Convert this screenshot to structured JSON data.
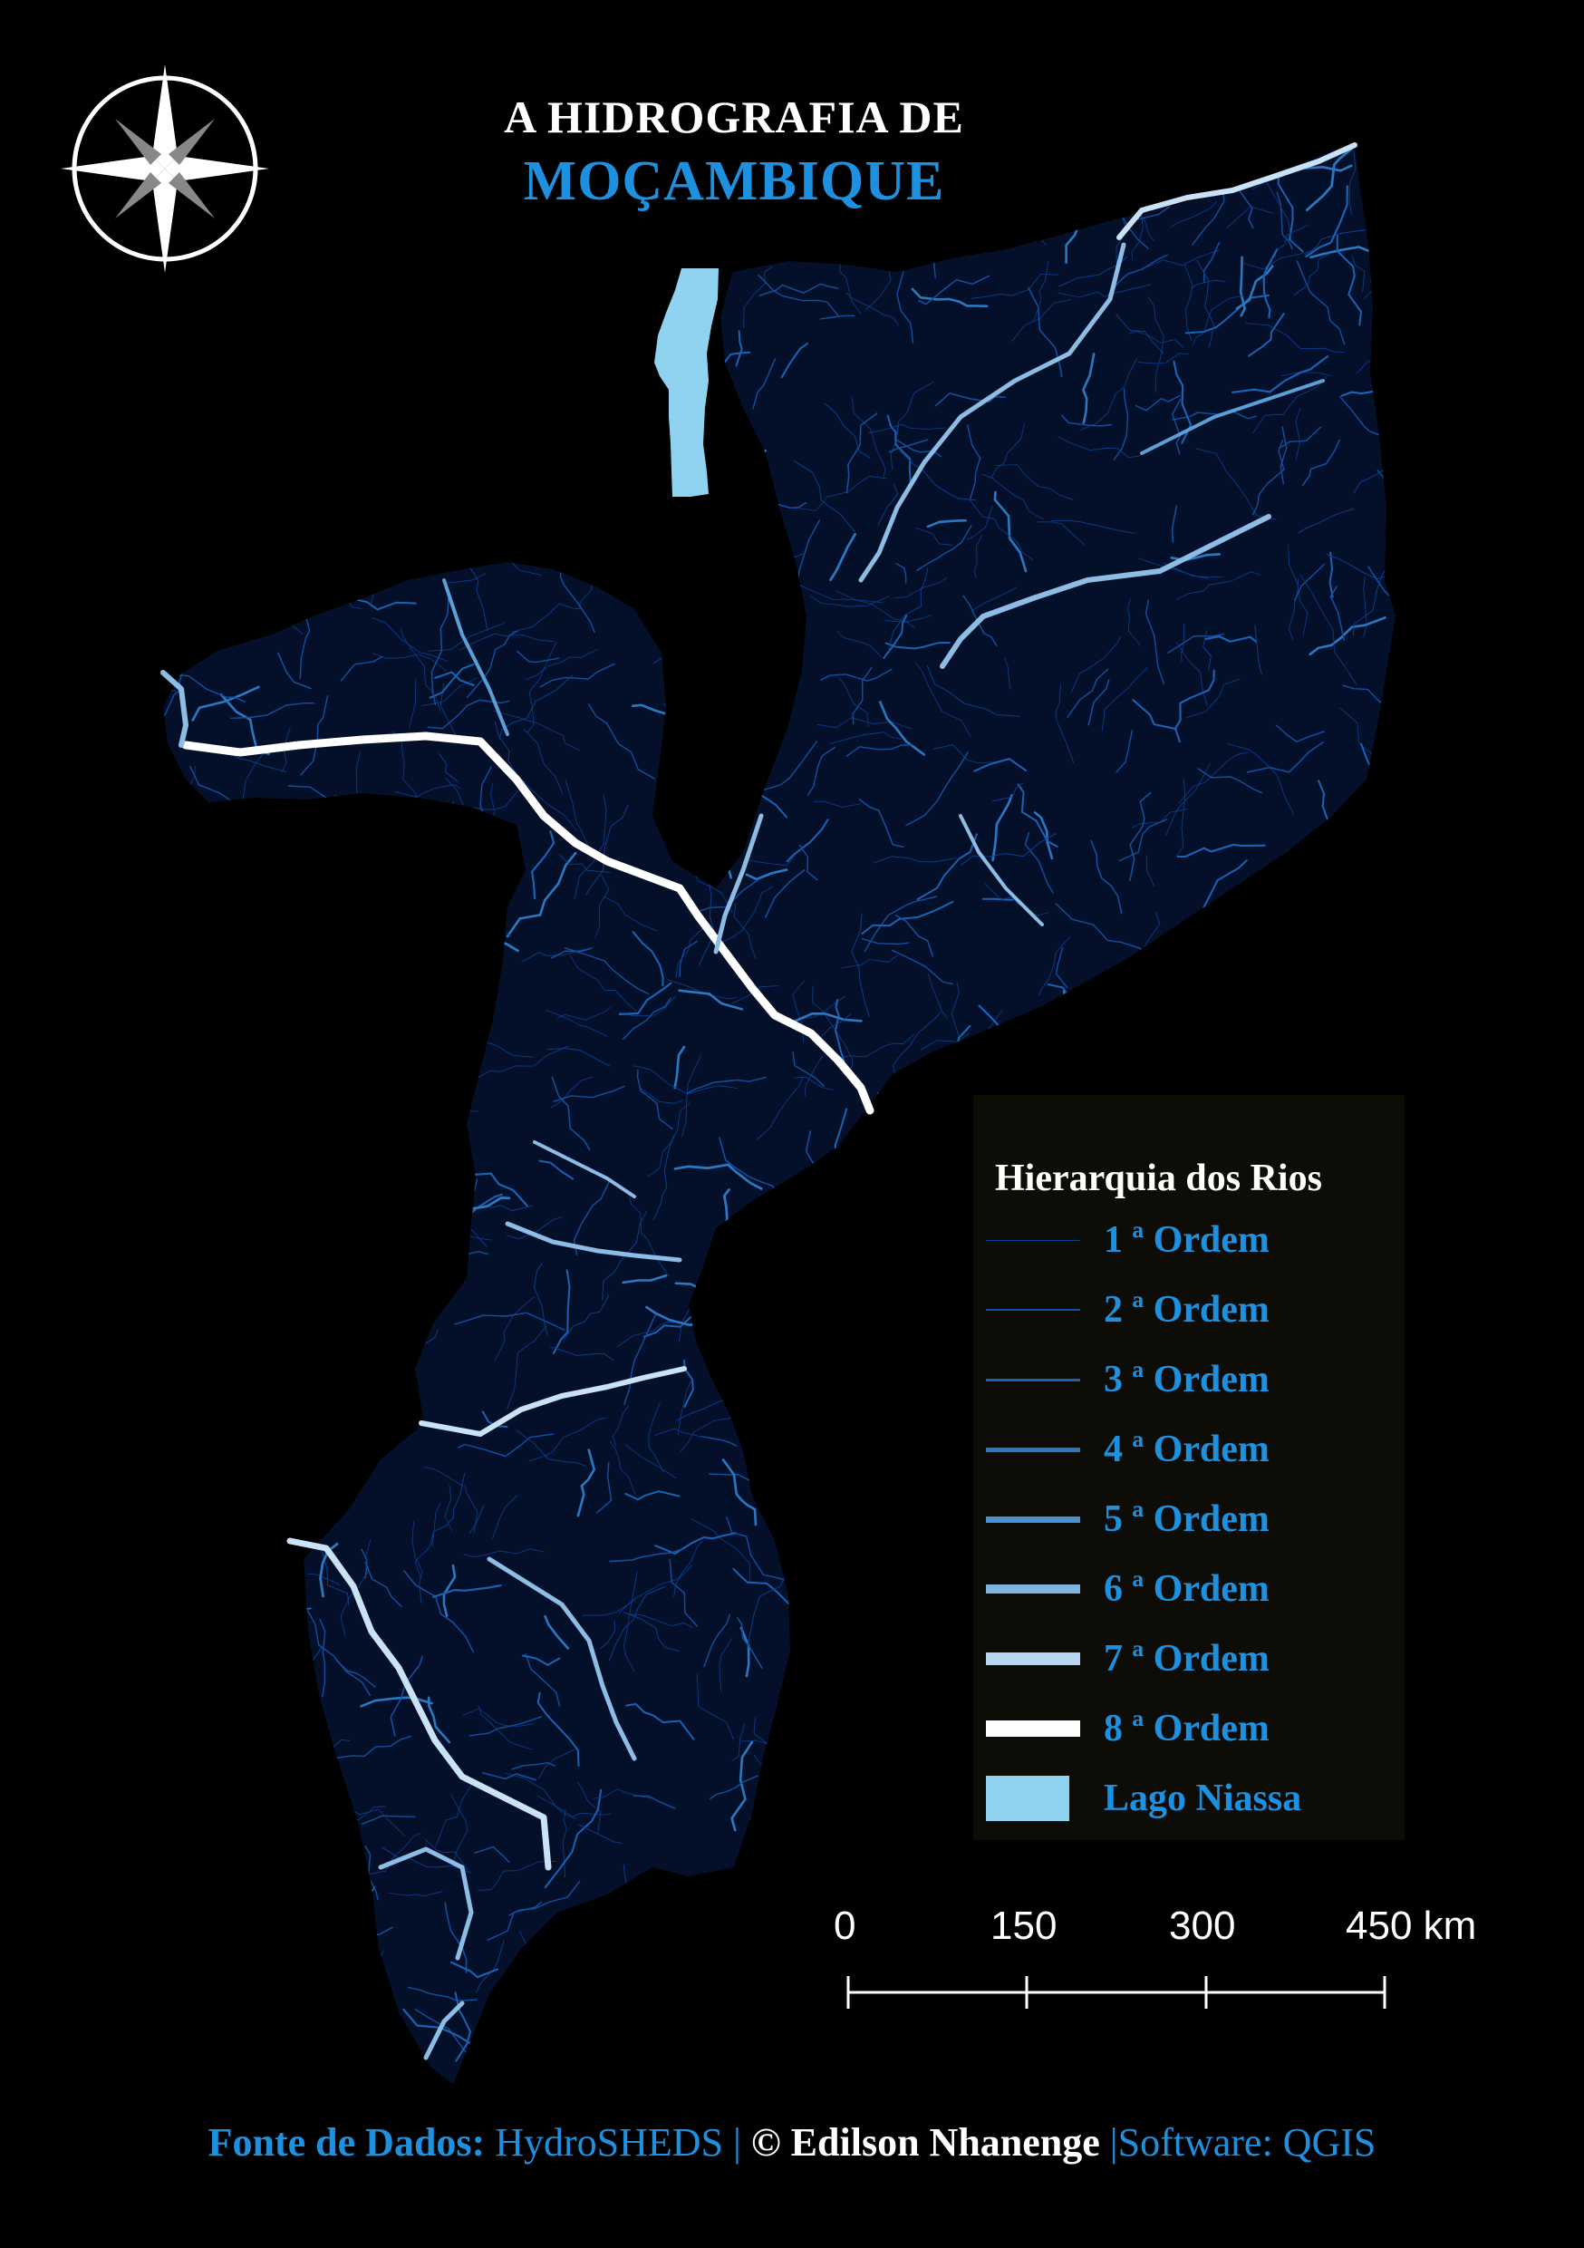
{
  "title": {
    "line1": "A HIDROGRAFIA DE",
    "line2": "MOÇAMBIQUE"
  },
  "colors": {
    "background": "#000000",
    "accent": "#1e90e0",
    "lake": "#8fd3f0",
    "legend_bg": "#0d0c07",
    "order_colors": [
      "#0b3f8f",
      "#124f9f",
      "#1a62b3",
      "#2b78c2",
      "#4a92d0",
      "#7fb4e0",
      "#b8d6ef",
      "#ffffff"
    ]
  },
  "legend": {
    "title": "Hierarquia dos Rios",
    "items": [
      {
        "label": "1 ª Ordem",
        "order": 1
      },
      {
        "label": "2 ª Ordem",
        "order": 2
      },
      {
        "label": "3 ª Ordem",
        "order": 3
      },
      {
        "label": "4 ª Ordem",
        "order": 4
      },
      {
        "label": "5 ª Ordem",
        "order": 5
      },
      {
        "label": "6 ª Ordem",
        "order": 6
      },
      {
        "label": "7 ª Ordem",
        "order": 7
      },
      {
        "label": "8 ª Ordem",
        "order": 8
      }
    ],
    "lake_label": "Lago Niassa"
  },
  "scale_bar": {
    "labels": [
      "0",
      "150",
      "300",
      "450 km"
    ]
  },
  "north_arrow": {
    "icon": "compass-rose-icon"
  },
  "footer": {
    "source_label": "Fonte de Dados:",
    "source_value": "HydroSHEDS",
    "separator": "|",
    "copyright": "© Edilson Nhanenge",
    "software": "|Software: QGIS"
  }
}
